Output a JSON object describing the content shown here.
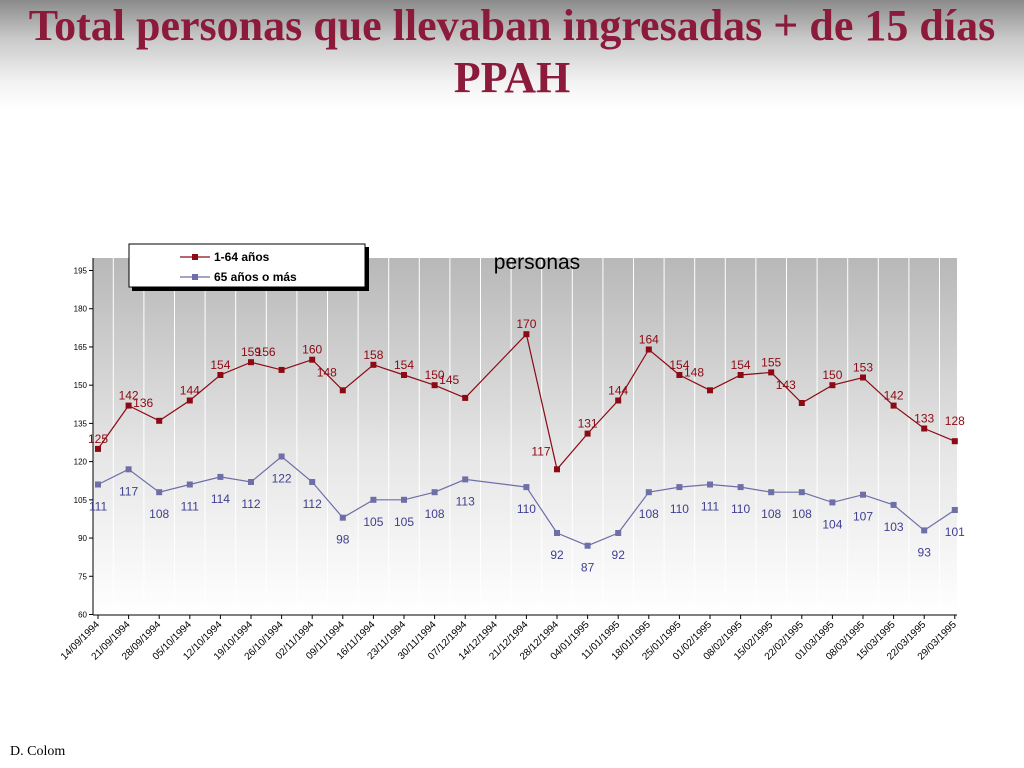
{
  "slide": {
    "title": "Total personas que llevaban ingresadas + de 15 días PPAH",
    "footer": "D. Colom"
  },
  "colors": {
    "title": "#8b1a3b",
    "series1": "#8b0a14",
    "series2": "#6e6ea8",
    "label2": "#3f3f8f"
  },
  "chart_data": {
    "type": "line",
    "title": "personas",
    "xlabel": "",
    "ylabel": "",
    "ylim": [
      60,
      195
    ],
    "yticks": [
      60,
      75,
      90,
      105,
      120,
      135,
      150,
      165,
      180,
      195
    ],
    "grid": "vertical",
    "legend": "top-left",
    "categories": [
      "14/09/1994",
      "21/09/1994",
      "28/09/1994",
      "05/10/1994",
      "12/10/1994",
      "19/10/1994",
      "26/10/1994",
      "02/11/1994",
      "09/11/1994",
      "16/11/1994",
      "23/11/1994",
      "30/11/1994",
      "07/12/1994",
      "14/12/1994",
      "21/12/1994",
      "28/12/1994",
      "04/01/1995",
      "11/01/1995",
      "18/01/1995",
      "25/01/1995",
      "01/02/1995",
      "08/02/1995",
      "15/02/1995",
      "22/02/1995",
      "01/03/1995",
      "08/03/1995",
      "15/03/1995",
      "22/03/1995",
      "29/03/1995"
    ],
    "series": [
      {
        "name": "1-64 años",
        "values": [
          125,
          142,
          136,
          144,
          154,
          159,
          156,
          160,
          148,
          158,
          154,
          150,
          145,
          null,
          170,
          117,
          131,
          144,
          164,
          154,
          148,
          154,
          155,
          143,
          150,
          153,
          142,
          133,
          128
        ]
      },
      {
        "name": "65 años o más",
        "values": [
          111,
          117,
          108,
          111,
          114,
          112,
          122,
          112,
          98,
          105,
          105,
          108,
          113,
          null,
          110,
          92,
          87,
          92,
          108,
          110,
          111,
          110,
          108,
          108,
          104,
          107,
          103,
          93,
          101
        ]
      }
    ]
  }
}
